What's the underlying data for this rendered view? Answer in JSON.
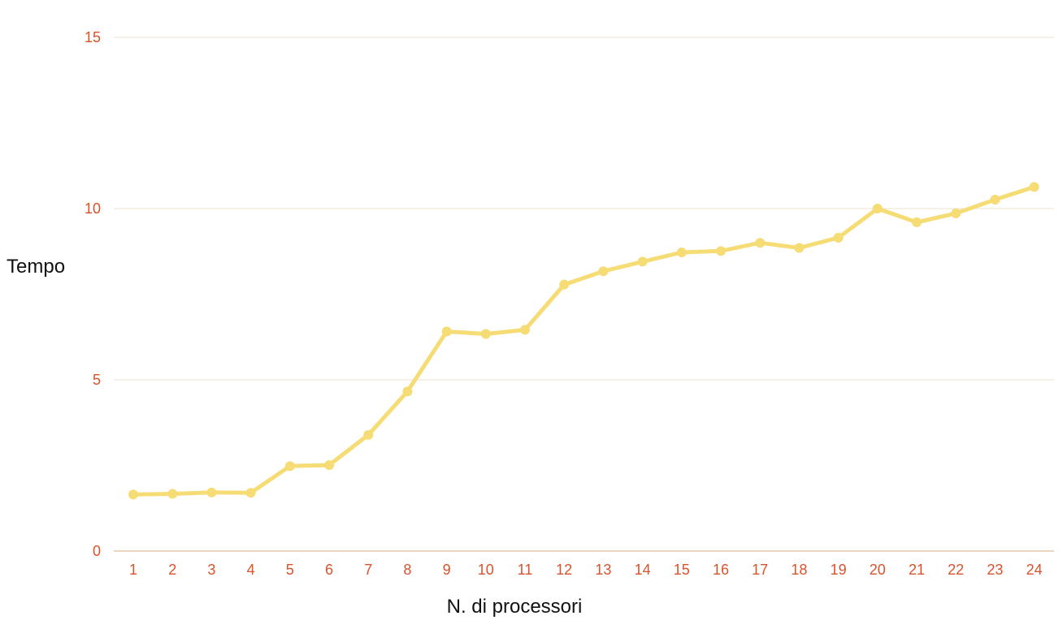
{
  "chart_data": {
    "type": "line",
    "xlabel": "N. di processori",
    "ylabel": "Tempo",
    "categories": [
      "1",
      "2",
      "3",
      "4",
      "5",
      "6",
      "7",
      "8",
      "9",
      "10",
      "11",
      "12",
      "13",
      "14",
      "15",
      "16",
      "17",
      "18",
      "19",
      "20",
      "21",
      "22",
      "23",
      "24"
    ],
    "series": [
      {
        "values": [
          1.65,
          1.67,
          1.71,
          1.7,
          2.48,
          2.51,
          3.39,
          4.66,
          6.41,
          6.34,
          6.46,
          7.78,
          8.17,
          8.45,
          8.72,
          8.76,
          9.0,
          8.85,
          9.15,
          10.0,
          9.6,
          9.86,
          10.26,
          10.63
        ],
        "color": "#F6DC75"
      }
    ],
    "ylim": [
      0,
      15
    ],
    "yticks": [
      0,
      5,
      10,
      15
    ],
    "grid": true,
    "legend": "none",
    "colors": {
      "tick_label": "#D9532B",
      "gridline": "#EDE3CF",
      "axis_line": "#DDBE9C",
      "line": "#F6DC75",
      "title": "#111111"
    }
  }
}
